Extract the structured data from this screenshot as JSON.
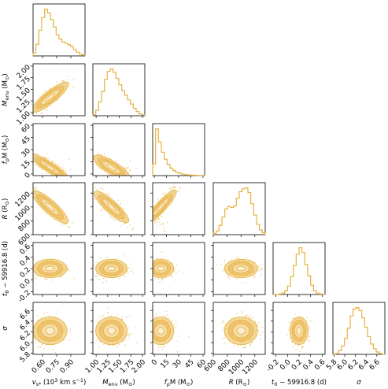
{
  "chart_data": {
    "type": "corner",
    "color": "#e6b23c",
    "parameters": [
      {
        "name": "v_s_star",
        "label": "v_{s*} (10^3 km s^-1)",
        "range": [
          0.5,
          1.05
        ],
        "ticks": [
          0.6,
          0.75,
          0.9
        ],
        "tick_labels": [
          "0.60",
          "0.75",
          "0.90"
        ],
        "mean": 0.68,
        "sd": 0.09,
        "hist": [
          0.06,
          0.25,
          0.55,
          0.82,
          1.0,
          0.92,
          0.78,
          0.62,
          0.45,
          0.36,
          0.3,
          0.27,
          0.24,
          0.2,
          0.14,
          0.08,
          0.04,
          0.02
        ]
      },
      {
        "name": "M_env",
        "label": "M_env (M_sun)",
        "range": [
          0.93,
          2.05
        ],
        "ticks": [
          1.0,
          1.25,
          1.5,
          1.75,
          2.0
        ],
        "tick_labels": [
          "1.00",
          "1.25",
          "1.50",
          "1.75",
          "2.00"
        ],
        "mean": 1.33,
        "sd": 0.17,
        "hist": [
          0.02,
          0.12,
          0.3,
          0.52,
          0.78,
          0.95,
          1.0,
          0.93,
          0.8,
          0.66,
          0.54,
          0.44,
          0.34,
          0.25,
          0.16,
          0.09,
          0.04,
          0.02
        ]
      },
      {
        "name": "f_rho_M",
        "label": "f_rho M (M_sun)",
        "range": [
          -2,
          62
        ],
        "ticks": [
          0,
          15,
          30,
          45,
          60
        ],
        "tick_labels": [
          "0",
          "15",
          "30",
          "45",
          "60"
        ],
        "mean": 8,
        "sd": 8,
        "hist": [
          0.25,
          1.0,
          0.72,
          0.5,
          0.35,
          0.24,
          0.16,
          0.11,
          0.07,
          0.05,
          0.03,
          0.02,
          0.015,
          0.01,
          0.008,
          0.005,
          0.003,
          0.002
        ]
      },
      {
        "name": "R",
        "label": "R (R_sun)",
        "range": [
          600,
          1350
        ],
        "ticks": [
          600,
          800,
          1000,
          1200
        ],
        "tick_labels": [
          "600",
          "800",
          "1000",
          "1200"
        ],
        "mean": 1000,
        "sd": 120,
        "hist": [
          0.03,
          0.08,
          0.2,
          0.38,
          0.55,
          0.6,
          0.58,
          0.62,
          0.78,
          0.92,
          0.98,
          1.0,
          0.9,
          0.66,
          0.42,
          0.22,
          0.1,
          0.04
        ]
      },
      {
        "name": "t0",
        "label": "t_0 - 59916.8 (d)",
        "range": [
          -0.25,
          0.65
        ],
        "ticks": [
          -0.2,
          0.0,
          0.2,
          0.4,
          0.6
        ],
        "tick_labels": [
          "-0.2",
          "0.0",
          "0.2",
          "0.4",
          "0.6"
        ],
        "mean": 0.2,
        "sd": 0.08,
        "hist": [
          0.0,
          0.0,
          0.01,
          0.03,
          0.08,
          0.18,
          0.38,
          0.62,
          0.86,
          1.0,
          0.9,
          0.64,
          0.4,
          0.2,
          0.08,
          0.03,
          0.01,
          0.0
        ]
      },
      {
        "name": "sigma",
        "label": "sigma",
        "range": [
          5.78,
          6.75
        ],
        "ticks": [
          5.8,
          6.0,
          6.2,
          6.4,
          6.6
        ],
        "tick_labels": [
          "5.8",
          "6.0",
          "6.2",
          "6.4",
          "6.6"
        ],
        "mean": 6.22,
        "sd": 0.13,
        "hist": [
          0.0,
          0.02,
          0.08,
          0.18,
          0.34,
          0.56,
          0.82,
          0.97,
          1.0,
          0.94,
          0.78,
          0.58,
          0.38,
          0.22,
          0.12,
          0.05,
          0.02,
          0.0
        ]
      }
    ],
    "correlations": [
      [
        1,
        0.85,
        -0.85,
        -0.92,
        0.0,
        0.0
      ],
      [
        0.85,
        1,
        -0.75,
        -0.85,
        0.0,
        0.0
      ],
      [
        -0.85,
        -0.75,
        1,
        0.85,
        0.0,
        0.0
      ],
      [
        -0.92,
        -0.85,
        0.85,
        1,
        0.0,
        0.0
      ],
      [
        0.0,
        0.0,
        0.0,
        0.0,
        1,
        0.0
      ],
      [
        0.0,
        0.0,
        0.0,
        0.0,
        0.0,
        1
      ]
    ],
    "xlabels": {
      "v_s_star": {
        "main": "v",
        "sub": "s*",
        "rest": " (10",
        "sup": "3",
        "rest2": " km s",
        "sup2": "−1",
        "rest3": ")"
      },
      "M_env": {
        "main": "M",
        "sub": "env",
        "rest": " (M",
        "sub2": "⊙",
        "rest2": ")"
      },
      "f_rho_M": {
        "main": "f",
        "sub": "ρ",
        "rest": "M (M",
        "sub2": "⊙",
        "rest2": ")"
      },
      "R": {
        "main": "R",
        "rest": " (R",
        "sub2": "⊙",
        "rest2": ")"
      },
      "t0": {
        "main": "t",
        "sub": "0",
        "rest": " − 59916.8 (d)"
      },
      "sigma": {
        "main": "σ"
      }
    }
  }
}
